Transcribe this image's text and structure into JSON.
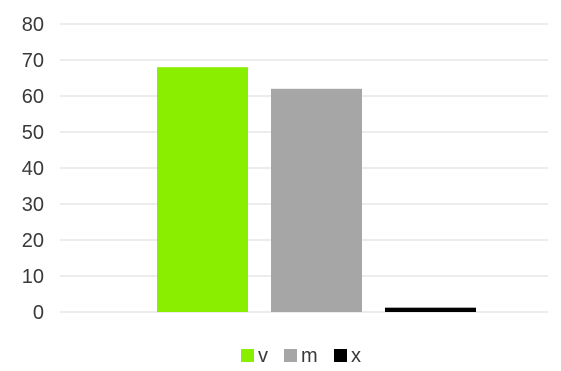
{
  "chart_data": {
    "type": "bar",
    "series": [
      {
        "name": "v",
        "value": 68,
        "color": "#8aee00"
      },
      {
        "name": "m",
        "value": 62,
        "color": "#a6a6a6"
      },
      {
        "name": "x",
        "value": 1.2,
        "color": "#000000"
      }
    ],
    "ylim": [
      0,
      80
    ],
    "yticks": [
      "0",
      "10",
      "20",
      "30",
      "40",
      "50",
      "60",
      "70",
      "80"
    ],
    "grid": true,
    "legend_position": "bottom"
  }
}
